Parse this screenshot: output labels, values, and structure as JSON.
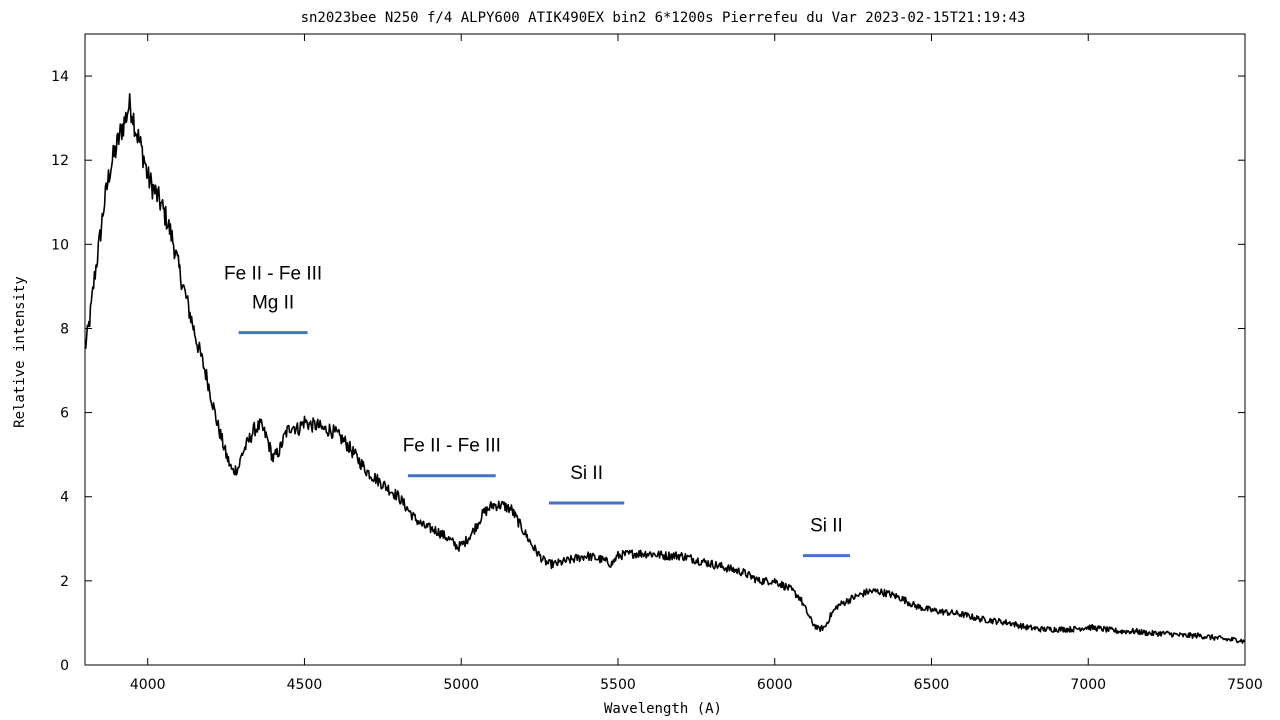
{
  "chart_data": {
    "type": "line",
    "title": "sn2023bee N250 f/4 ALPY600 ATIK490EX bin2 6*1200s Pierrefeu du Var 2023-02-15T21:19:43",
    "xlabel": "Wavelength (A)",
    "ylabel": "Relative intensity",
    "xlim": [
      3800,
      7500
    ],
    "ylim": [
      0,
      15
    ],
    "xticks": [
      4000,
      4500,
      5000,
      5500,
      6000,
      6500,
      7000,
      7500
    ],
    "yticks": [
      0,
      2,
      4,
      6,
      8,
      10,
      12,
      14
    ],
    "xtick_labels": [
      "4000",
      "4500",
      "5000",
      "5500",
      "6000",
      "6500",
      "7000",
      "7500"
    ],
    "ytick_labels": [
      "0",
      "2",
      "4",
      "6",
      "8",
      "10",
      "12",
      "14"
    ],
    "grid": false,
    "line_color": "#000000",
    "annotation_color": "#4472c4",
    "series": [
      {
        "x": [
          3800,
          3815,
          3830,
          3845,
          3860,
          3880,
          3900,
          3915,
          3930,
          3940,
          3950,
          3960,
          3975,
          3990,
          4000,
          4020,
          4040,
          4060,
          4080,
          4100,
          4130,
          4160,
          4190,
          4220,
          4250,
          4270,
          4290,
          4300,
          4320,
          4340,
          4360,
          4380,
          4400,
          4420,
          4440,
          4460,
          4480,
          4500,
          4520,
          4540,
          4560,
          4580,
          4600,
          4630,
          4660,
          4700,
          4750,
          4800,
          4830,
          4850,
          4880,
          4920,
          4960,
          4990,
          5010,
          5040,
          5070,
          5100,
          5130,
          5160,
          5190,
          5230,
          5260,
          5280,
          5300,
          5350,
          5400,
          5450,
          5480,
          5500,
          5550,
          5600,
          5650,
          5700,
          5750,
          5800,
          5850,
          5900,
          5950,
          6000,
          6050,
          6080,
          6100,
          6120,
          6140,
          6160,
          6180,
          6200,
          6250,
          6300,
          6330,
          6360,
          6400,
          6450,
          6500,
          6550,
          6600,
          6650,
          6700,
          6750,
          6800,
          6850,
          6900,
          6950,
          7000,
          7050,
          7100,
          7150,
          7200,
          7250,
          7300,
          7350,
          7400,
          7450,
          7480,
          7500
        ],
        "y": [
          7.5,
          8.2,
          9.2,
          10.0,
          10.9,
          11.8,
          12.3,
          12.7,
          13.0,
          13.3,
          13.2,
          12.8,
          12.4,
          12.0,
          11.6,
          11.3,
          11.0,
          10.6,
          10.1,
          9.4,
          8.5,
          7.6,
          6.8,
          5.8,
          5.0,
          4.6,
          4.7,
          5.0,
          5.3,
          5.6,
          5.7,
          5.4,
          4.9,
          5.1,
          5.5,
          5.7,
          5.6,
          5.8,
          5.7,
          5.7,
          5.6,
          5.6,
          5.5,
          5.3,
          5.0,
          4.6,
          4.3,
          4.0,
          3.7,
          3.5,
          3.3,
          3.2,
          3.0,
          2.8,
          2.9,
          3.2,
          3.6,
          3.8,
          3.8,
          3.7,
          3.3,
          2.8,
          2.5,
          2.4,
          2.4,
          2.5,
          2.6,
          2.5,
          2.4,
          2.6,
          2.65,
          2.65,
          2.6,
          2.6,
          2.5,
          2.4,
          2.3,
          2.2,
          2.0,
          2.0,
          1.8,
          1.6,
          1.3,
          1.0,
          0.85,
          0.9,
          1.2,
          1.4,
          1.6,
          1.75,
          1.75,
          1.7,
          1.6,
          1.4,
          1.3,
          1.25,
          1.2,
          1.1,
          1.05,
          1.0,
          0.9,
          0.85,
          0.85,
          0.85,
          0.9,
          0.85,
          0.8,
          0.8,
          0.75,
          0.75,
          0.7,
          0.7,
          0.65,
          0.6,
          0.6,
          0.55
        ]
      }
    ],
    "annotations": [
      {
        "lines": [
          "Fe II - Fe III",
          "Mg II"
        ],
        "x_start": 4290,
        "x_end": 4510,
        "y": 7.9
      },
      {
        "lines": [
          "Fe II - Fe III"
        ],
        "x_start": 4830,
        "x_end": 5110,
        "y": 4.5
      },
      {
        "lines": [
          "Si II"
        ],
        "x_start": 5280,
        "x_end": 5520,
        "y": 3.85
      },
      {
        "lines": [
          "Si II"
        ],
        "x_start": 6090,
        "x_end": 6240,
        "y": 2.6
      }
    ]
  }
}
